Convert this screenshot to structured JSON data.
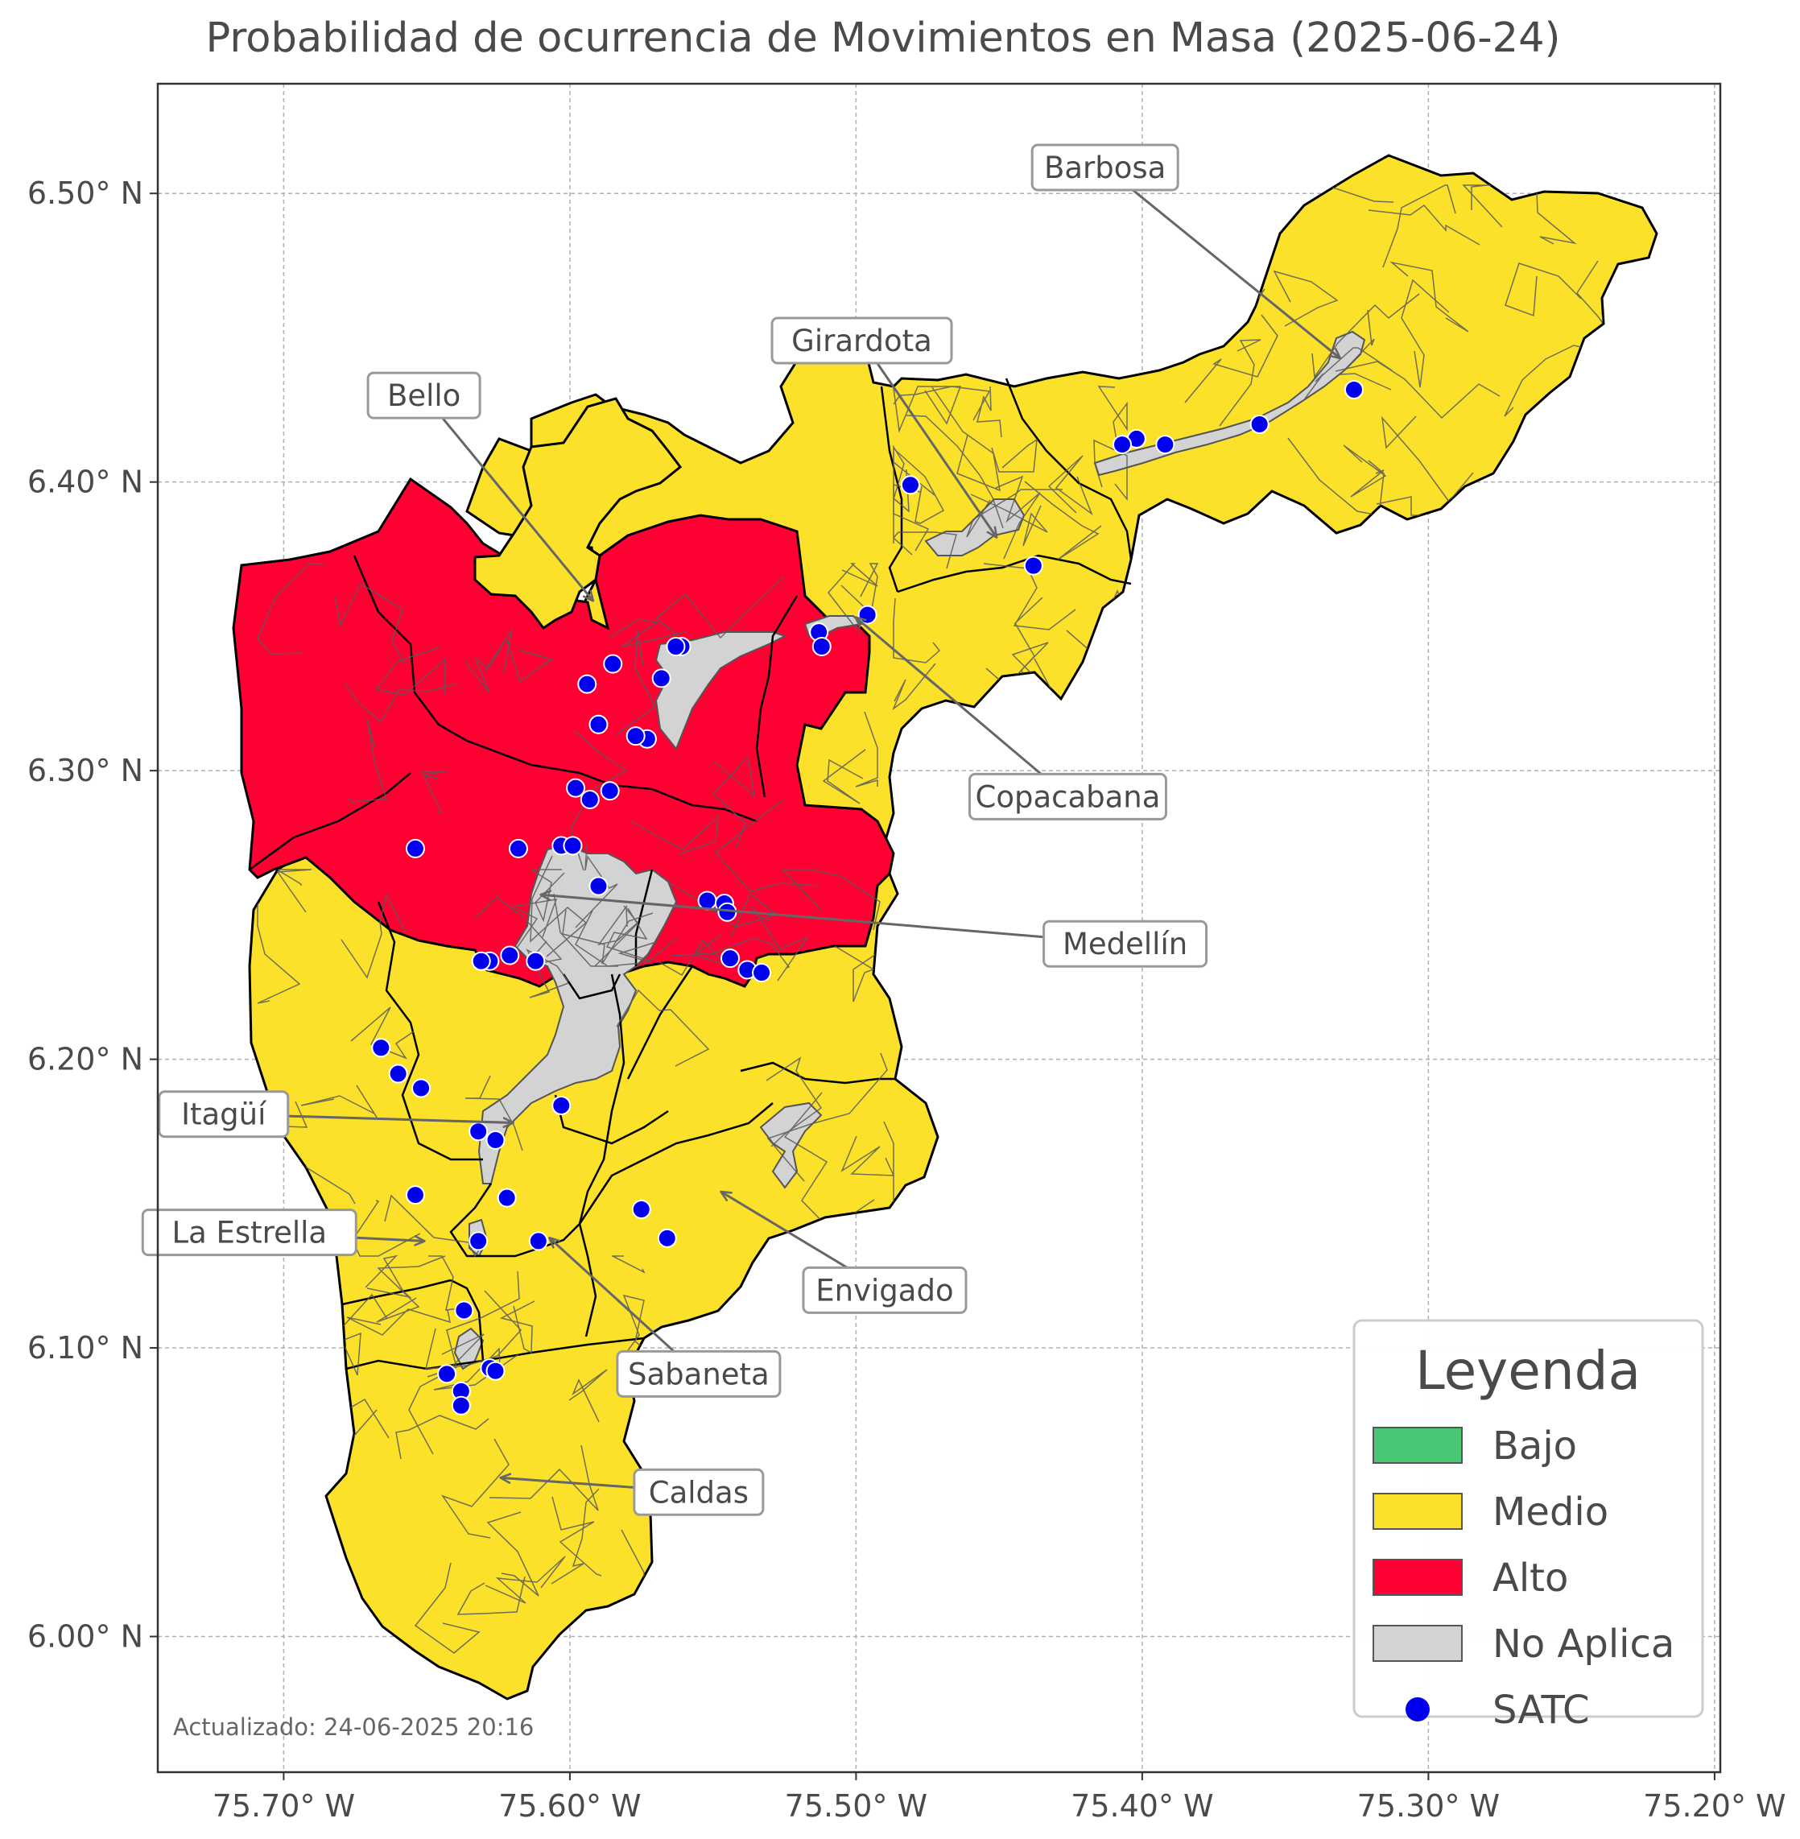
{
  "title": "Probabilidad de ocurrencia de Movimientos en Masa (2025-06-24)",
  "updated": "Actualizado: 24-06-2025 20:16",
  "axes": {
    "lon_min": -75.744,
    "lon_max": -75.198,
    "lat_min": 5.953,
    "lat_max": 6.538,
    "x_ticks": [
      {
        "value": -75.7,
        "label": "75.70° W"
      },
      {
        "value": -75.6,
        "label": "75.60° W"
      },
      {
        "value": -75.5,
        "label": "75.50° W"
      },
      {
        "value": -75.4,
        "label": "75.40° W"
      },
      {
        "value": -75.3,
        "label": "75.30° W"
      },
      {
        "value": -75.2,
        "label": "75.20° W"
      }
    ],
    "y_ticks": [
      {
        "value": 6.0,
        "label": "6.00° N"
      },
      {
        "value": 6.1,
        "label": "6.10° N"
      },
      {
        "value": 6.2,
        "label": "6.20° N"
      },
      {
        "value": 6.3,
        "label": "6.30° N"
      },
      {
        "value": 6.4,
        "label": "6.40° N"
      },
      {
        "value": 6.5,
        "label": "6.50° N"
      }
    ]
  },
  "colors": {
    "bajo": "#48c774",
    "medio": "#fbe12a",
    "alto": "#ff0033",
    "no_aplica": "#d3d3d3",
    "satc": "#0000ee"
  },
  "legend": {
    "title": "Leyenda",
    "items": [
      {
        "label": "Bajo",
        "color": "#48c774",
        "kind": "patch"
      },
      {
        "label": "Medio",
        "color": "#fbe12a",
        "kind": "patch"
      },
      {
        "label": "Alto",
        "color": "#ff0033",
        "kind": "patch"
      },
      {
        "label": "No Aplica",
        "color": "#d3d3d3",
        "kind": "patch"
      },
      {
        "label": "SATC",
        "color": "#0000ee",
        "kind": "dot"
      }
    ]
  },
  "municipalities": [
    {
      "name": "Barbosa",
      "level": "Medio",
      "lon": -75.331,
      "lat": 6.443,
      "label_lon": -75.413,
      "label_lat": 6.509
    },
    {
      "name": "Girardota",
      "level": "Medio",
      "lon": -75.451,
      "lat": 6.381,
      "label_lon": -75.498,
      "label_lat": 6.449
    },
    {
      "name": "Bello",
      "level": "Alto",
      "lon": -75.592,
      "lat": 6.359,
      "label_lon": -75.651,
      "label_lat": 6.43
    },
    {
      "name": "Copacabana",
      "level": "Alto",
      "lon": -75.5,
      "lat": 6.353,
      "label_lon": -75.426,
      "label_lat": 6.291
    },
    {
      "name": "Medellín",
      "level": "Alto",
      "lon": -75.61,
      "lat": 6.257,
      "label_lon": -75.406,
      "label_lat": 6.24
    },
    {
      "name": "Itagüí",
      "level": "Medio",
      "lon": -75.62,
      "lat": 6.178,
      "label_lon": -75.721,
      "label_lat": 6.181
    },
    {
      "name": "La Estrella",
      "level": "Medio",
      "lon": -75.651,
      "lat": 6.137,
      "label_lon": -75.712,
      "label_lat": 6.14
    },
    {
      "name": "Envigado",
      "level": "Medio",
      "lon": -75.547,
      "lat": 6.154,
      "label_lon": -75.49,
      "label_lat": 6.12
    },
    {
      "name": "Sabaneta",
      "level": "Medio",
      "lon": -75.607,
      "lat": 6.138,
      "label_lon": -75.555,
      "label_lat": 6.091
    },
    {
      "name": "Caldas",
      "level": "Medio",
      "lon": -75.624,
      "lat": 6.055,
      "label_lon": -75.555,
      "label_lat": 6.05
    }
  ],
  "satc_points": [
    [
      -75.326,
      6.432
    ],
    [
      -75.359,
      6.42
    ],
    [
      -75.392,
      6.413
    ],
    [
      -75.402,
      6.415
    ],
    [
      -75.407,
      6.413
    ],
    [
      -75.481,
      6.399
    ],
    [
      -75.438,
      6.371
    ],
    [
      -75.496,
      6.354
    ],
    [
      -75.513,
      6.348
    ],
    [
      -75.512,
      6.343
    ],
    [
      -75.561,
      6.343
    ],
    [
      -75.563,
      6.343
    ],
    [
      -75.568,
      6.332
    ],
    [
      -75.585,
      6.337
    ],
    [
      -75.594,
      6.33
    ],
    [
      -75.59,
      6.316
    ],
    [
      -75.573,
      6.311
    ],
    [
      -75.577,
      6.312
    ],
    [
      -75.598,
      6.294
    ],
    [
      -75.593,
      6.29
    ],
    [
      -75.586,
      6.293
    ],
    [
      -75.654,
      6.273
    ],
    [
      -75.618,
      6.273
    ],
    [
      -75.603,
      6.274
    ],
    [
      -75.599,
      6.274
    ],
    [
      -75.59,
      6.26
    ],
    [
      -75.552,
      6.255
    ],
    [
      -75.546,
      6.254
    ],
    [
      -75.545,
      6.251
    ],
    [
      -75.544,
      6.235
    ],
    [
      -75.538,
      6.231
    ],
    [
      -75.533,
      6.23
    ],
    [
      -75.621,
      6.236
    ],
    [
      -75.628,
      6.234
    ],
    [
      -75.631,
      6.234
    ],
    [
      -75.612,
      6.234
    ],
    [
      -75.666,
      6.204
    ],
    [
      -75.66,
      6.195
    ],
    [
      -75.652,
      6.19
    ],
    [
      -75.603,
      6.184
    ],
    [
      -75.632,
      6.175
    ],
    [
      -75.626,
      6.172
    ],
    [
      -75.654,
      6.153
    ],
    [
      -75.622,
      6.152
    ],
    [
      -75.575,
      6.148
    ],
    [
      -75.566,
      6.138
    ],
    [
      -75.632,
      6.137
    ],
    [
      -75.611,
      6.137
    ],
    [
      -75.637,
      6.113
    ],
    [
      -75.643,
      6.091
    ],
    [
      -75.628,
      6.093
    ],
    [
      -75.626,
      6.092
    ],
    [
      -75.638,
      6.085
    ],
    [
      -75.638,
      6.08
    ]
  ]
}
